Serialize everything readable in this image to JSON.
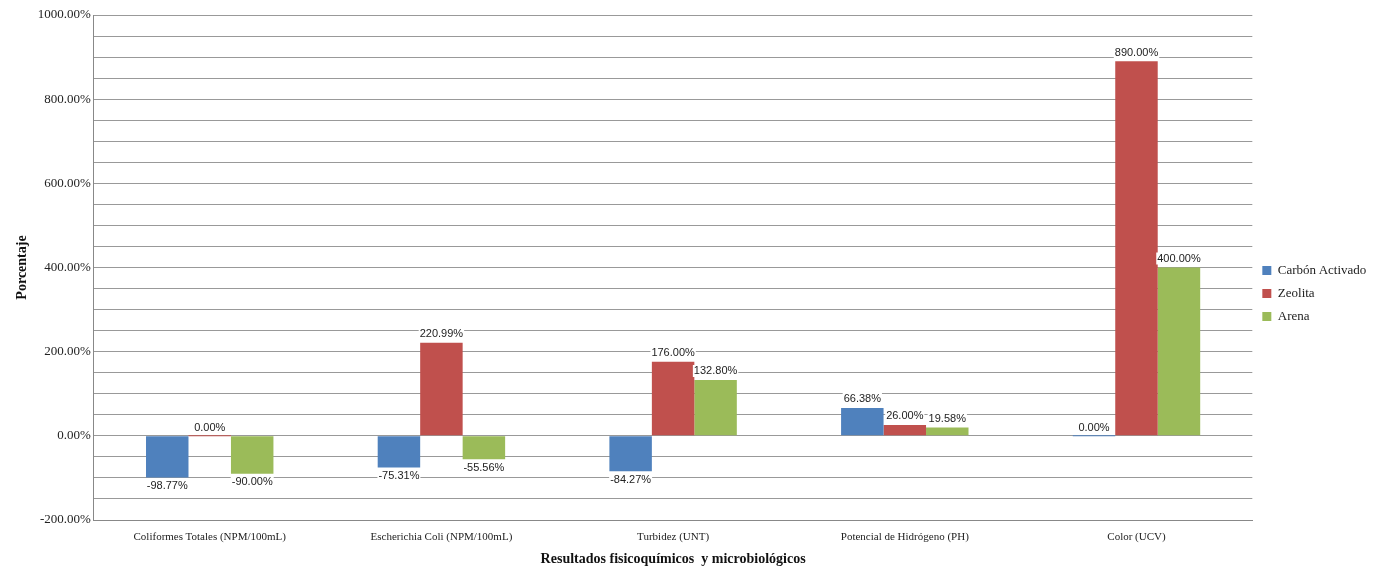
{
  "chart_data": {
    "type": "bar",
    "xlabel": "Resultados fisicoquímicos  y microbiológicos",
    "ylabel": "Porcentaje",
    "categories": [
      "Coliformes Totales (NPM/100mL)",
      "Escherichia Coli (NPM/100mL)",
      "Turbidez (UNT)",
      "Potencial de Hidrógeno (PH)",
      "Color (UCV)"
    ],
    "series": [
      {
        "name": "Carbón Activado",
        "color": "#4f81bd",
        "values": [
          -98.77,
          -75.31,
          -84.27,
          66.38,
          0
        ],
        "value_labels": [
          "-98.77%",
          "-75.31%",
          "-84.27%",
          "66.38%",
          "0.00%"
        ]
      },
      {
        "name": "Zeolita",
        "color": "#c0504d",
        "values": [
          0,
          220.99,
          176,
          26,
          890
        ],
        "value_labels": [
          "0.00%",
          "220.99%",
          "176.00%",
          "26.00%",
          "890.00%"
        ]
      },
      {
        "name": "Arena",
        "color": "#9bbb59",
        "values": [
          -90,
          -55.56,
          132.8,
          19.58,
          400
        ],
        "value_labels": [
          "-90.00%",
          "-55.56%",
          "132.80%",
          "19.58%",
          "400.00%"
        ]
      }
    ],
    "ylim": [
      -200,
      1000
    ],
    "yticks": [
      {
        "value": -200,
        "label": "-200.00%"
      },
      {
        "value": -150,
        "label": null
      },
      {
        "value": -100,
        "label": null
      },
      {
        "value": -50,
        "label": null
      },
      {
        "value": 0,
        "label": "0.00%"
      },
      {
        "value": 50,
        "label": null
      },
      {
        "value": 100,
        "label": null
      },
      {
        "value": 150,
        "label": null
      },
      {
        "value": 200,
        "label": "200.00%"
      },
      {
        "value": 250,
        "label": null
      },
      {
        "value": 300,
        "label": null
      },
      {
        "value": 350,
        "label": null
      },
      {
        "value": 400,
        "label": "400.00%"
      },
      {
        "value": 450,
        "label": null
      },
      {
        "value": 500,
        "label": null
      },
      {
        "value": 550,
        "label": null
      },
      {
        "value": 600,
        "label": "600.00%"
      },
      {
        "value": 650,
        "label": null
      },
      {
        "value": 700,
        "label": null
      },
      {
        "value": 750,
        "label": null
      },
      {
        "value": 800,
        "label": "800.00%"
      },
      {
        "value": 850,
        "label": null
      },
      {
        "value": 900,
        "label": null
      },
      {
        "value": 950,
        "label": null
      },
      {
        "value": 1000,
        "label": "1000.00%"
      }
    ],
    "grid": "y",
    "legend": "right"
  }
}
